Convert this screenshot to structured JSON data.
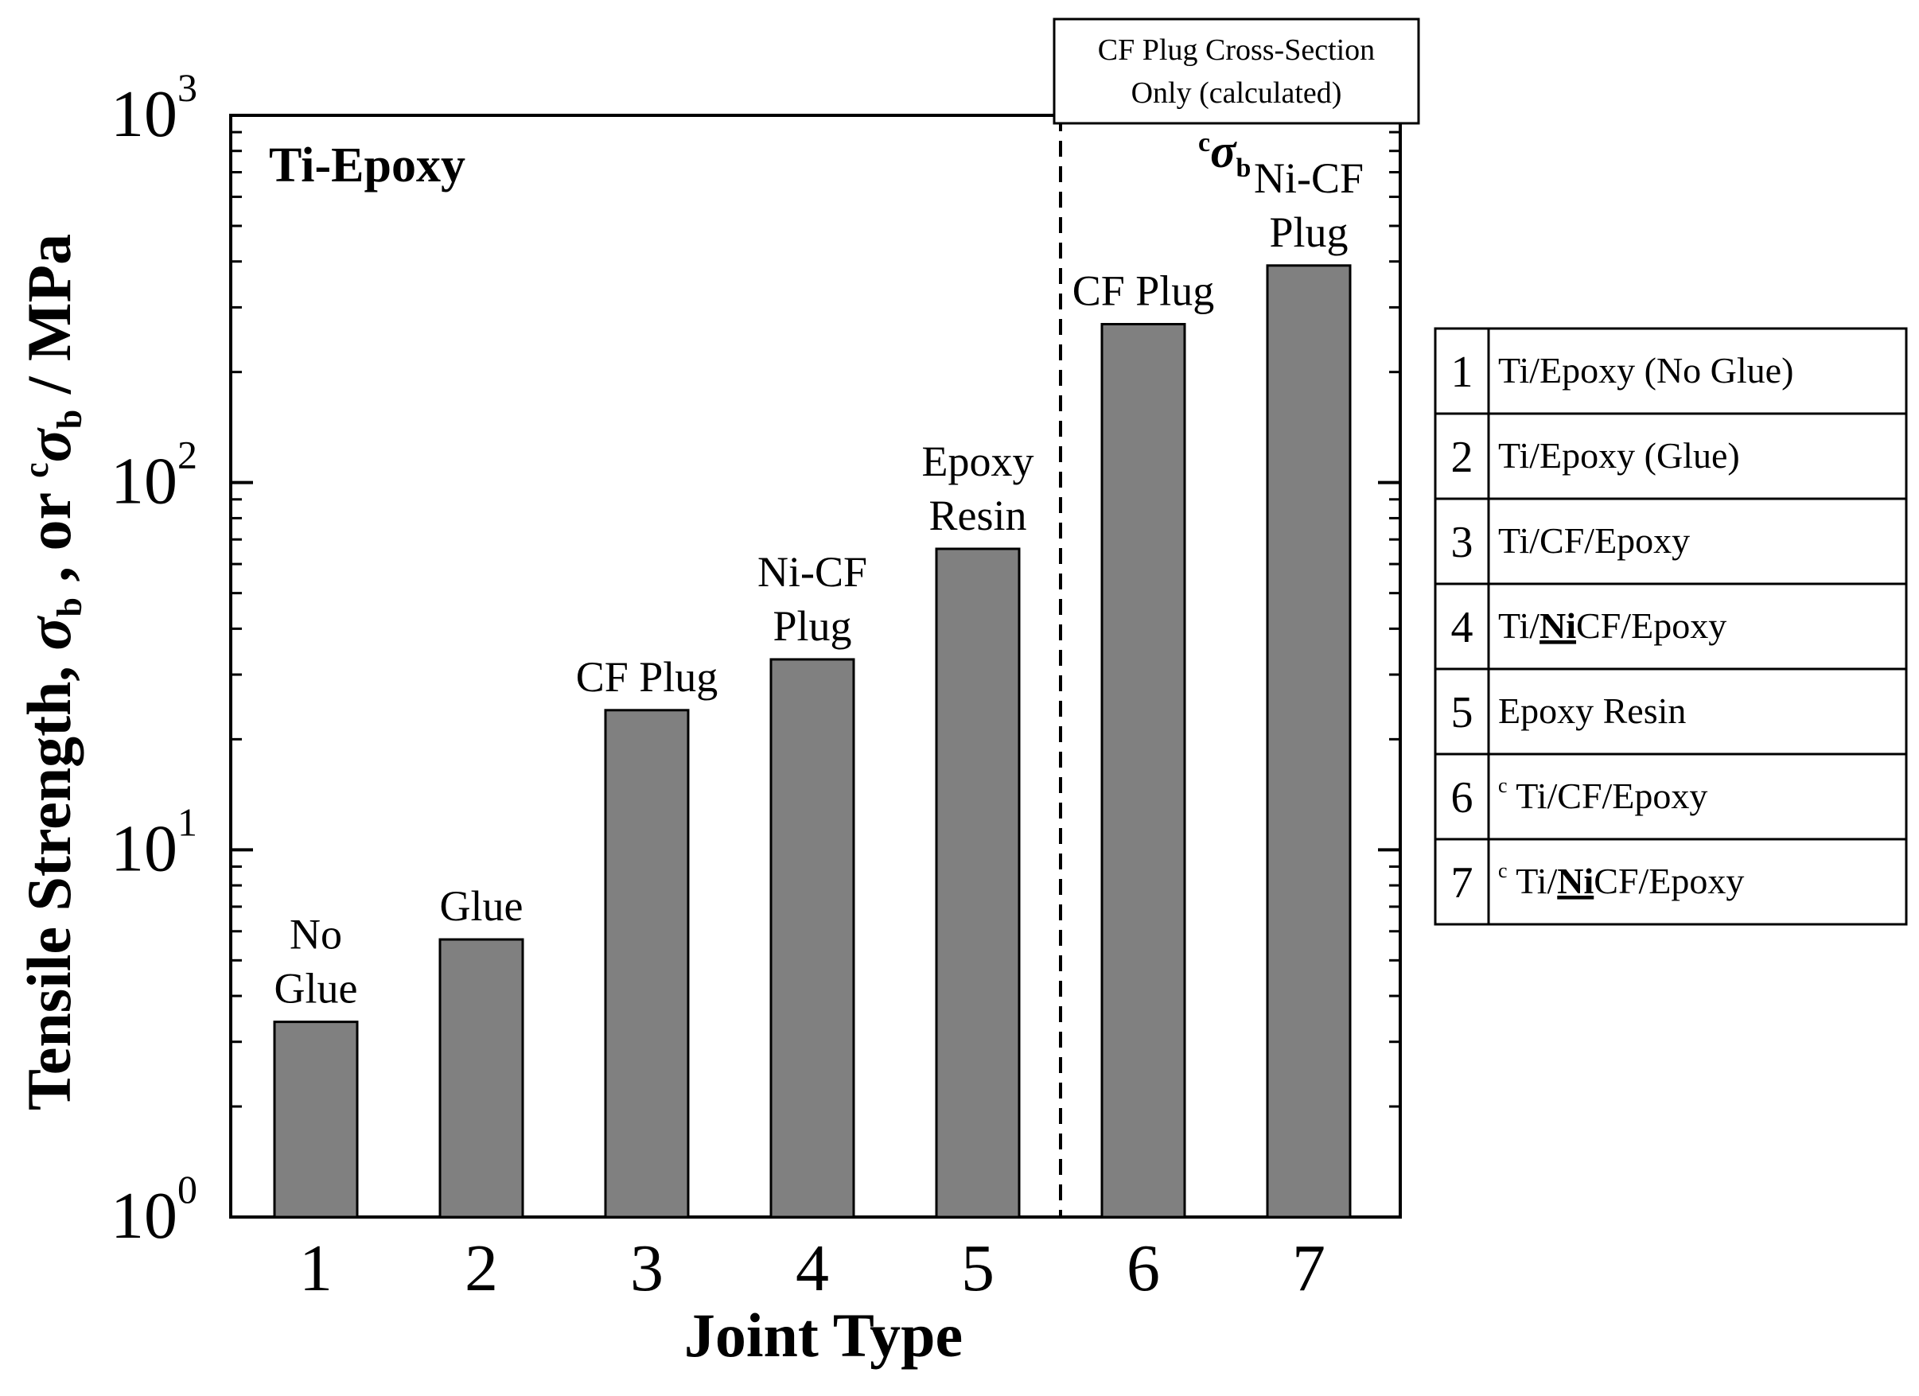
{
  "chart_data": {
    "type": "bar",
    "panel_label": "Ti-Epoxy",
    "categories": [
      "1",
      "2",
      "3",
      "4",
      "5",
      "6",
      "7"
    ],
    "values": [
      3.4,
      5.7,
      24,
      33,
      66,
      270,
      390
    ],
    "bar_labels": [
      [
        "No",
        "Glue"
      ],
      [
        "Glue"
      ],
      [
        "CF Plug"
      ],
      [
        "Ni-CF",
        "Plug"
      ],
      [
        "Epoxy",
        "Resin"
      ],
      [
        "CF Plug"
      ],
      [
        "Ni-CF",
        "Plug"
      ]
    ],
    "bar_color": "#808080",
    "yscale": "log",
    "ylim": [
      1,
      1000
    ],
    "yticks": [
      {
        "base": "10",
        "exp": "0"
      },
      {
        "base": "10",
        "exp": "1"
      },
      {
        "base": "10",
        "exp": "2"
      },
      {
        "base": "10",
        "exp": "3"
      }
    ],
    "xlabel": "Joint Type",
    "ylabel": {
      "part1": "Tensile Strength, ",
      "sigma": "σ",
      "sub": "b",
      "part2": " , or ",
      "sup": "c",
      "part3": " / MPa"
    },
    "divider_after_category": "5",
    "section_box": {
      "line1": "CF Plug  Cross-Section",
      "line2": "Only  (calculated)"
    },
    "section_symbol": {
      "sup": "c",
      "sigma": "σ",
      "sub": "b"
    },
    "legend_table": [
      {
        "num": "1",
        "c": "",
        "pre": "Ti/Epoxy (No Glue)",
        "bold": "",
        "post": ""
      },
      {
        "num": "2",
        "c": "",
        "pre": "Ti/Epoxy (Glue)",
        "bold": "",
        "post": ""
      },
      {
        "num": "3",
        "c": "",
        "pre": "Ti/CF/Epoxy",
        "bold": "",
        "post": ""
      },
      {
        "num": "4",
        "c": "",
        "pre": "Ti/",
        "bold": "Ni",
        "post": "CF/Epoxy"
      },
      {
        "num": "5",
        "c": "",
        "pre": " Epoxy Resin",
        "bold": "",
        "post": ""
      },
      {
        "num": "6",
        "c": "c",
        "pre": " Ti/CF/Epoxy",
        "bold": "",
        "post": ""
      },
      {
        "num": "7",
        "c": "c",
        "pre": " Ti/",
        "bold": "Ni",
        "post": "CF/Epoxy"
      }
    ]
  }
}
